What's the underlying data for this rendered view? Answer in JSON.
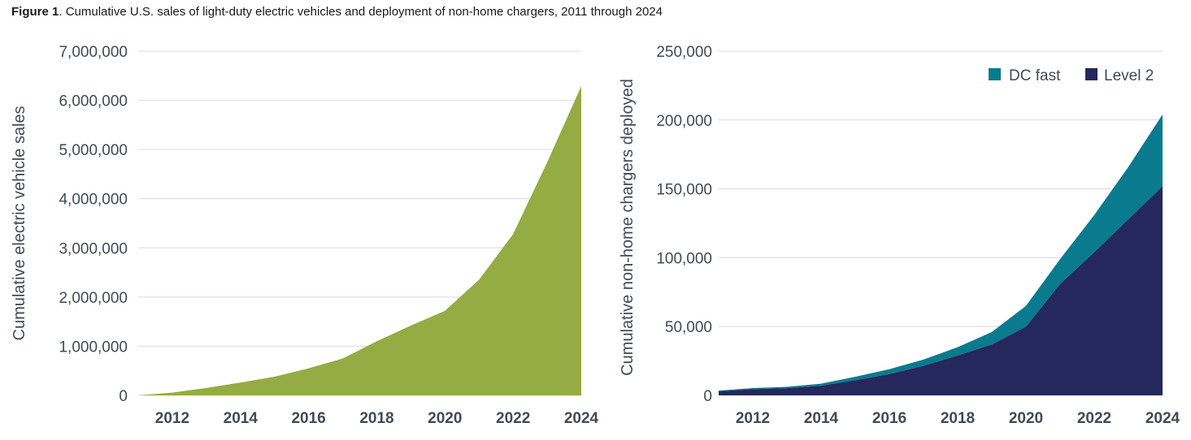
{
  "caption": {
    "label": "Figure 1",
    "text": ". Cumulative U.S. sales of light-duty electric vehicles and deployment of non-home chargers, 2011 through 2024"
  },
  "chart_data": [
    {
      "type": "area",
      "ylabel": "Cumulative electric vehicle sales",
      "xlabel": "",
      "x": [
        2011,
        2012,
        2013,
        2014,
        2015,
        2016,
        2017,
        2018,
        2019,
        2020,
        2021,
        2022,
        2023,
        2024
      ],
      "series": [
        {
          "values": [
            0,
            55000,
            150000,
            260000,
            380000,
            550000,
            750000,
            1100000,
            1420000,
            1720000,
            2350000,
            3280000,
            4740000,
            6290000
          ],
          "color": "#95ab43"
        }
      ],
      "xticks": [
        "2012",
        "2014",
        "2016",
        "2018",
        "2020",
        "2022",
        "2024"
      ],
      "yticks": [
        "0",
        "1,000,000",
        "2,000,000",
        "3,000,000",
        "4,000,000",
        "5,000,000",
        "6,000,000",
        "7,000,000"
      ],
      "ylim": [
        0,
        7000000
      ],
      "xlim": [
        2011,
        2024
      ],
      "grid": true
    },
    {
      "type": "area",
      "stacked": true,
      "ylabel": "Cumulative non-home chargers deployed",
      "xlabel": "",
      "x": [
        2011,
        2012,
        2013,
        2014,
        2015,
        2016,
        2017,
        2018,
        2019,
        2020,
        2021,
        2022,
        2023,
        2024
      ],
      "series": [
        {
          "name": "Level 2",
          "color": "#24285c",
          "values": [
            3000,
            4500,
            5200,
            7000,
            11000,
            15500,
            21500,
            29000,
            37000,
            50000,
            81000,
            104000,
            128000,
            152000
          ]
        },
        {
          "name": "DC fast",
          "color": "#0a7b8e",
          "values": [
            500,
            800,
            1000,
            1500,
            2500,
            3500,
            4500,
            6000,
            9000,
            15000,
            18000,
            27000,
            38000,
            52000
          ]
        }
      ],
      "xticks": [
        "2012",
        "2014",
        "2016",
        "2018",
        "2020",
        "2022",
        "2024"
      ],
      "yticks": [
        "0",
        "50,000",
        "100,000",
        "150,000",
        "200,000",
        "250,000"
      ],
      "ylim": [
        0,
        250000
      ],
      "xlim": [
        2011,
        2024
      ],
      "legend": "top-right",
      "legend_order": [
        "DC fast",
        "Level 2"
      ],
      "grid": true
    }
  ]
}
